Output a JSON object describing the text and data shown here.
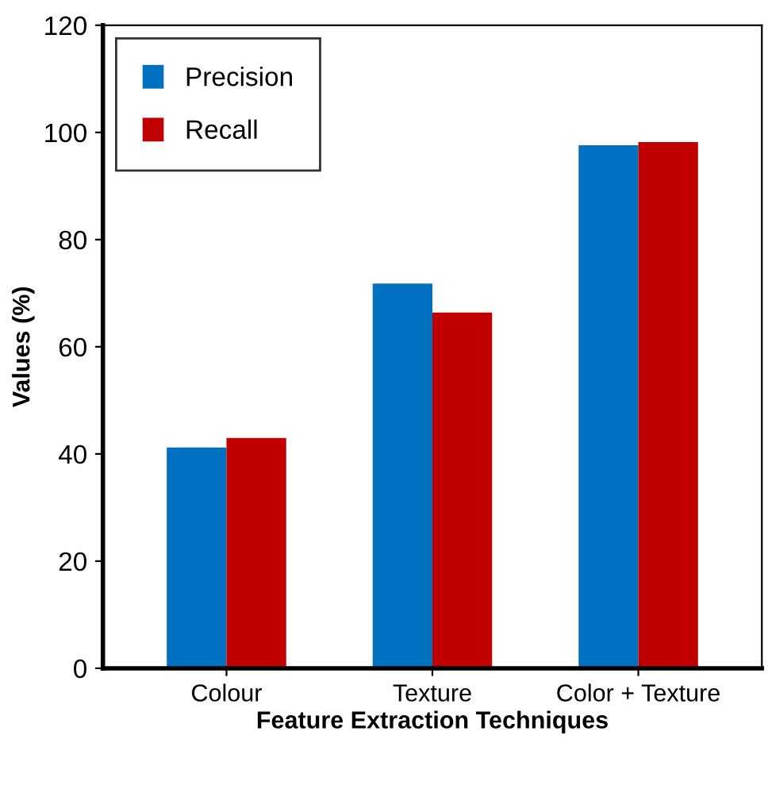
{
  "chart_data": {
    "type": "bar",
    "xlabel": "Feature Extraction Techniques",
    "ylabel": "Values (%)",
    "categories": [
      "Colour",
      "Texture",
      "Color + Texture"
    ],
    "series": [
      {
        "name": "Precision",
        "color": "#0070c0",
        "values": [
          41.2,
          71.8,
          97.6
        ]
      },
      {
        "name": "Recall",
        "color": "#c00000",
        "values": [
          43,
          66.4,
          98.2
        ]
      }
    ],
    "ylim": [
      0,
      120
    ],
    "yticks": [
      0,
      20,
      40,
      60,
      80,
      100,
      120
    ],
    "grid": false,
    "legend": "top left"
  }
}
